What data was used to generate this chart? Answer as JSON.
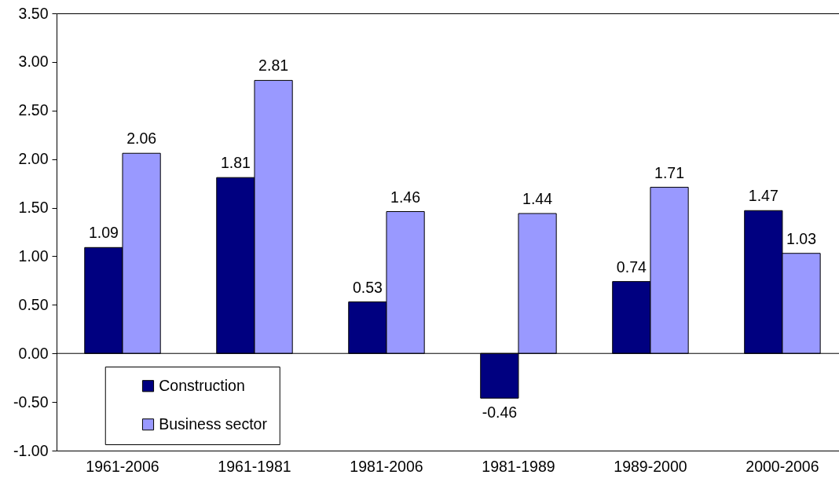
{
  "chart_data": {
    "type": "bar",
    "categories": [
      "1961-2006",
      "1961-1981",
      "1981-2006",
      "1981-1989",
      "1989-2000",
      "2000-2006"
    ],
    "series": [
      {
        "name": "Construction",
        "color": "#000080",
        "values": [
          1.09,
          1.81,
          0.53,
          -0.46,
          0.74,
          1.47
        ]
      },
      {
        "name": "Business sector",
        "color": "#9999ff",
        "values": [
          2.06,
          2.81,
          1.46,
          1.44,
          1.71,
          1.03
        ]
      }
    ],
    "ylim": [
      -1.0,
      3.5
    ],
    "yticks": [
      {
        "value": -1.0,
        "label": "-1.00"
      },
      {
        "value": -0.5,
        "label": "-0.50"
      },
      {
        "value": 0,
        "label": "0.00"
      },
      {
        "value": 0.5,
        "label": "0.50"
      },
      {
        "value": 1.0,
        "label": "1.00"
      },
      {
        "value": 1.5,
        "label": "1.50"
      },
      {
        "value": 2.0,
        "label": "2.00"
      },
      {
        "value": 2.5,
        "label": "2.50"
      },
      {
        "value": 3.0,
        "label": "3.00"
      },
      {
        "value": 3.5,
        "label": "3.50"
      }
    ],
    "ref_lines": [
      {
        "axis": "y",
        "value": 0,
        "color": "#000000"
      }
    ],
    "data_labels": true,
    "legend": "bottom left"
  }
}
